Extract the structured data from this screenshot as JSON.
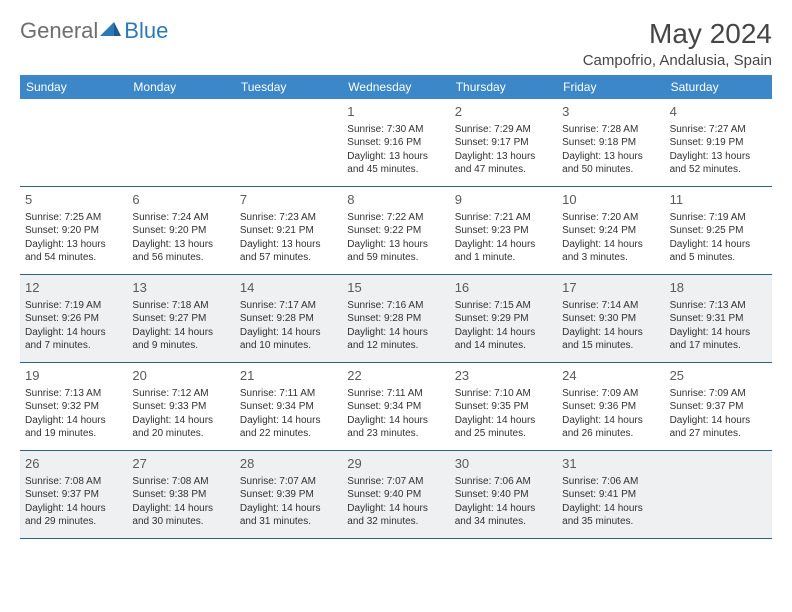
{
  "logo": {
    "general": "General",
    "blue": "Blue"
  },
  "title": "May 2024",
  "location": "Campofrio, Andalusia, Spain",
  "colors": {
    "headerBg": "#3b87c8",
    "headerText": "#ffffff",
    "borderColor": "#2d5f8f",
    "shadeBg": "#eef0f2",
    "textColor": "#323232",
    "titleColor": "#464646",
    "logoGray": "#6d6e71",
    "logoBlue": "#2a7ab8"
  },
  "weekdays": [
    "Sunday",
    "Monday",
    "Tuesday",
    "Wednesday",
    "Thursday",
    "Friday",
    "Saturday"
  ],
  "weeks": [
    {
      "shade": false,
      "days": [
        {
          "n": "",
          "sr": "",
          "ss": "",
          "d1": "",
          "d2": "",
          "empty": true
        },
        {
          "n": "",
          "sr": "",
          "ss": "",
          "d1": "",
          "d2": "",
          "empty": true
        },
        {
          "n": "",
          "sr": "",
          "ss": "",
          "d1": "",
          "d2": "",
          "empty": true
        },
        {
          "n": "1",
          "sr": "Sunrise: 7:30 AM",
          "ss": "Sunset: 9:16 PM",
          "d1": "Daylight: 13 hours",
          "d2": "and 45 minutes."
        },
        {
          "n": "2",
          "sr": "Sunrise: 7:29 AM",
          "ss": "Sunset: 9:17 PM",
          "d1": "Daylight: 13 hours",
          "d2": "and 47 minutes."
        },
        {
          "n": "3",
          "sr": "Sunrise: 7:28 AM",
          "ss": "Sunset: 9:18 PM",
          "d1": "Daylight: 13 hours",
          "d2": "and 50 minutes."
        },
        {
          "n": "4",
          "sr": "Sunrise: 7:27 AM",
          "ss": "Sunset: 9:19 PM",
          "d1": "Daylight: 13 hours",
          "d2": "and 52 minutes."
        }
      ]
    },
    {
      "shade": false,
      "days": [
        {
          "n": "5",
          "sr": "Sunrise: 7:25 AM",
          "ss": "Sunset: 9:20 PM",
          "d1": "Daylight: 13 hours",
          "d2": "and 54 minutes."
        },
        {
          "n": "6",
          "sr": "Sunrise: 7:24 AM",
          "ss": "Sunset: 9:20 PM",
          "d1": "Daylight: 13 hours",
          "d2": "and 56 minutes."
        },
        {
          "n": "7",
          "sr": "Sunrise: 7:23 AM",
          "ss": "Sunset: 9:21 PM",
          "d1": "Daylight: 13 hours",
          "d2": "and 57 minutes."
        },
        {
          "n": "8",
          "sr": "Sunrise: 7:22 AM",
          "ss": "Sunset: 9:22 PM",
          "d1": "Daylight: 13 hours",
          "d2": "and 59 minutes."
        },
        {
          "n": "9",
          "sr": "Sunrise: 7:21 AM",
          "ss": "Sunset: 9:23 PM",
          "d1": "Daylight: 14 hours",
          "d2": "and 1 minute."
        },
        {
          "n": "10",
          "sr": "Sunrise: 7:20 AM",
          "ss": "Sunset: 9:24 PM",
          "d1": "Daylight: 14 hours",
          "d2": "and 3 minutes."
        },
        {
          "n": "11",
          "sr": "Sunrise: 7:19 AM",
          "ss": "Sunset: 9:25 PM",
          "d1": "Daylight: 14 hours",
          "d2": "and 5 minutes."
        }
      ]
    },
    {
      "shade": true,
      "days": [
        {
          "n": "12",
          "sr": "Sunrise: 7:19 AM",
          "ss": "Sunset: 9:26 PM",
          "d1": "Daylight: 14 hours",
          "d2": "and 7 minutes."
        },
        {
          "n": "13",
          "sr": "Sunrise: 7:18 AM",
          "ss": "Sunset: 9:27 PM",
          "d1": "Daylight: 14 hours",
          "d2": "and 9 minutes."
        },
        {
          "n": "14",
          "sr": "Sunrise: 7:17 AM",
          "ss": "Sunset: 9:28 PM",
          "d1": "Daylight: 14 hours",
          "d2": "and 10 minutes."
        },
        {
          "n": "15",
          "sr": "Sunrise: 7:16 AM",
          "ss": "Sunset: 9:28 PM",
          "d1": "Daylight: 14 hours",
          "d2": "and 12 minutes."
        },
        {
          "n": "16",
          "sr": "Sunrise: 7:15 AM",
          "ss": "Sunset: 9:29 PM",
          "d1": "Daylight: 14 hours",
          "d2": "and 14 minutes."
        },
        {
          "n": "17",
          "sr": "Sunrise: 7:14 AM",
          "ss": "Sunset: 9:30 PM",
          "d1": "Daylight: 14 hours",
          "d2": "and 15 minutes."
        },
        {
          "n": "18",
          "sr": "Sunrise: 7:13 AM",
          "ss": "Sunset: 9:31 PM",
          "d1": "Daylight: 14 hours",
          "d2": "and 17 minutes."
        }
      ]
    },
    {
      "shade": false,
      "days": [
        {
          "n": "19",
          "sr": "Sunrise: 7:13 AM",
          "ss": "Sunset: 9:32 PM",
          "d1": "Daylight: 14 hours",
          "d2": "and 19 minutes."
        },
        {
          "n": "20",
          "sr": "Sunrise: 7:12 AM",
          "ss": "Sunset: 9:33 PM",
          "d1": "Daylight: 14 hours",
          "d2": "and 20 minutes."
        },
        {
          "n": "21",
          "sr": "Sunrise: 7:11 AM",
          "ss": "Sunset: 9:34 PM",
          "d1": "Daylight: 14 hours",
          "d2": "and 22 minutes."
        },
        {
          "n": "22",
          "sr": "Sunrise: 7:11 AM",
          "ss": "Sunset: 9:34 PM",
          "d1": "Daylight: 14 hours",
          "d2": "and 23 minutes."
        },
        {
          "n": "23",
          "sr": "Sunrise: 7:10 AM",
          "ss": "Sunset: 9:35 PM",
          "d1": "Daylight: 14 hours",
          "d2": "and 25 minutes."
        },
        {
          "n": "24",
          "sr": "Sunrise: 7:09 AM",
          "ss": "Sunset: 9:36 PM",
          "d1": "Daylight: 14 hours",
          "d2": "and 26 minutes."
        },
        {
          "n": "25",
          "sr": "Sunrise: 7:09 AM",
          "ss": "Sunset: 9:37 PM",
          "d1": "Daylight: 14 hours",
          "d2": "and 27 minutes."
        }
      ]
    },
    {
      "shade": true,
      "days": [
        {
          "n": "26",
          "sr": "Sunrise: 7:08 AM",
          "ss": "Sunset: 9:37 PM",
          "d1": "Daylight: 14 hours",
          "d2": "and 29 minutes."
        },
        {
          "n": "27",
          "sr": "Sunrise: 7:08 AM",
          "ss": "Sunset: 9:38 PM",
          "d1": "Daylight: 14 hours",
          "d2": "and 30 minutes."
        },
        {
          "n": "28",
          "sr": "Sunrise: 7:07 AM",
          "ss": "Sunset: 9:39 PM",
          "d1": "Daylight: 14 hours",
          "d2": "and 31 minutes."
        },
        {
          "n": "29",
          "sr": "Sunrise: 7:07 AM",
          "ss": "Sunset: 9:40 PM",
          "d1": "Daylight: 14 hours",
          "d2": "and 32 minutes."
        },
        {
          "n": "30",
          "sr": "Sunrise: 7:06 AM",
          "ss": "Sunset: 9:40 PM",
          "d1": "Daylight: 14 hours",
          "d2": "and 34 minutes."
        },
        {
          "n": "31",
          "sr": "Sunrise: 7:06 AM",
          "ss": "Sunset: 9:41 PM",
          "d1": "Daylight: 14 hours",
          "d2": "and 35 minutes."
        },
        {
          "n": "",
          "sr": "",
          "ss": "",
          "d1": "",
          "d2": "",
          "empty": true
        }
      ]
    }
  ]
}
